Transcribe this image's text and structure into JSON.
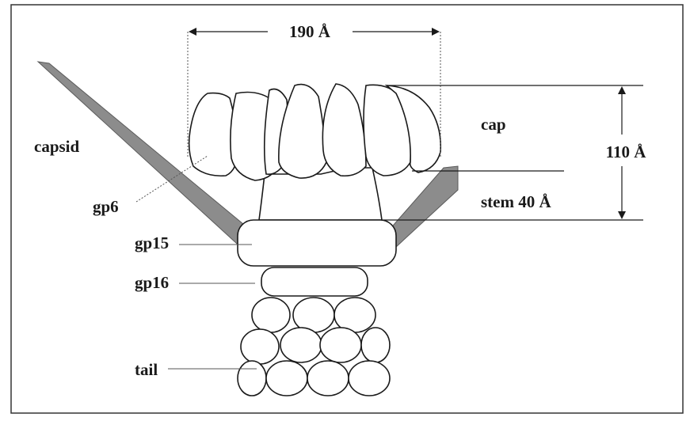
{
  "labels": {
    "capsid": "capsid",
    "cap": "cap",
    "stem": "stem 40 Å",
    "gp6": "gp6",
    "gp15": "gp15",
    "gp16": "gp16",
    "tail": "tail",
    "width_dim": "190 Å",
    "height_dim": "110 Å"
  }
}
